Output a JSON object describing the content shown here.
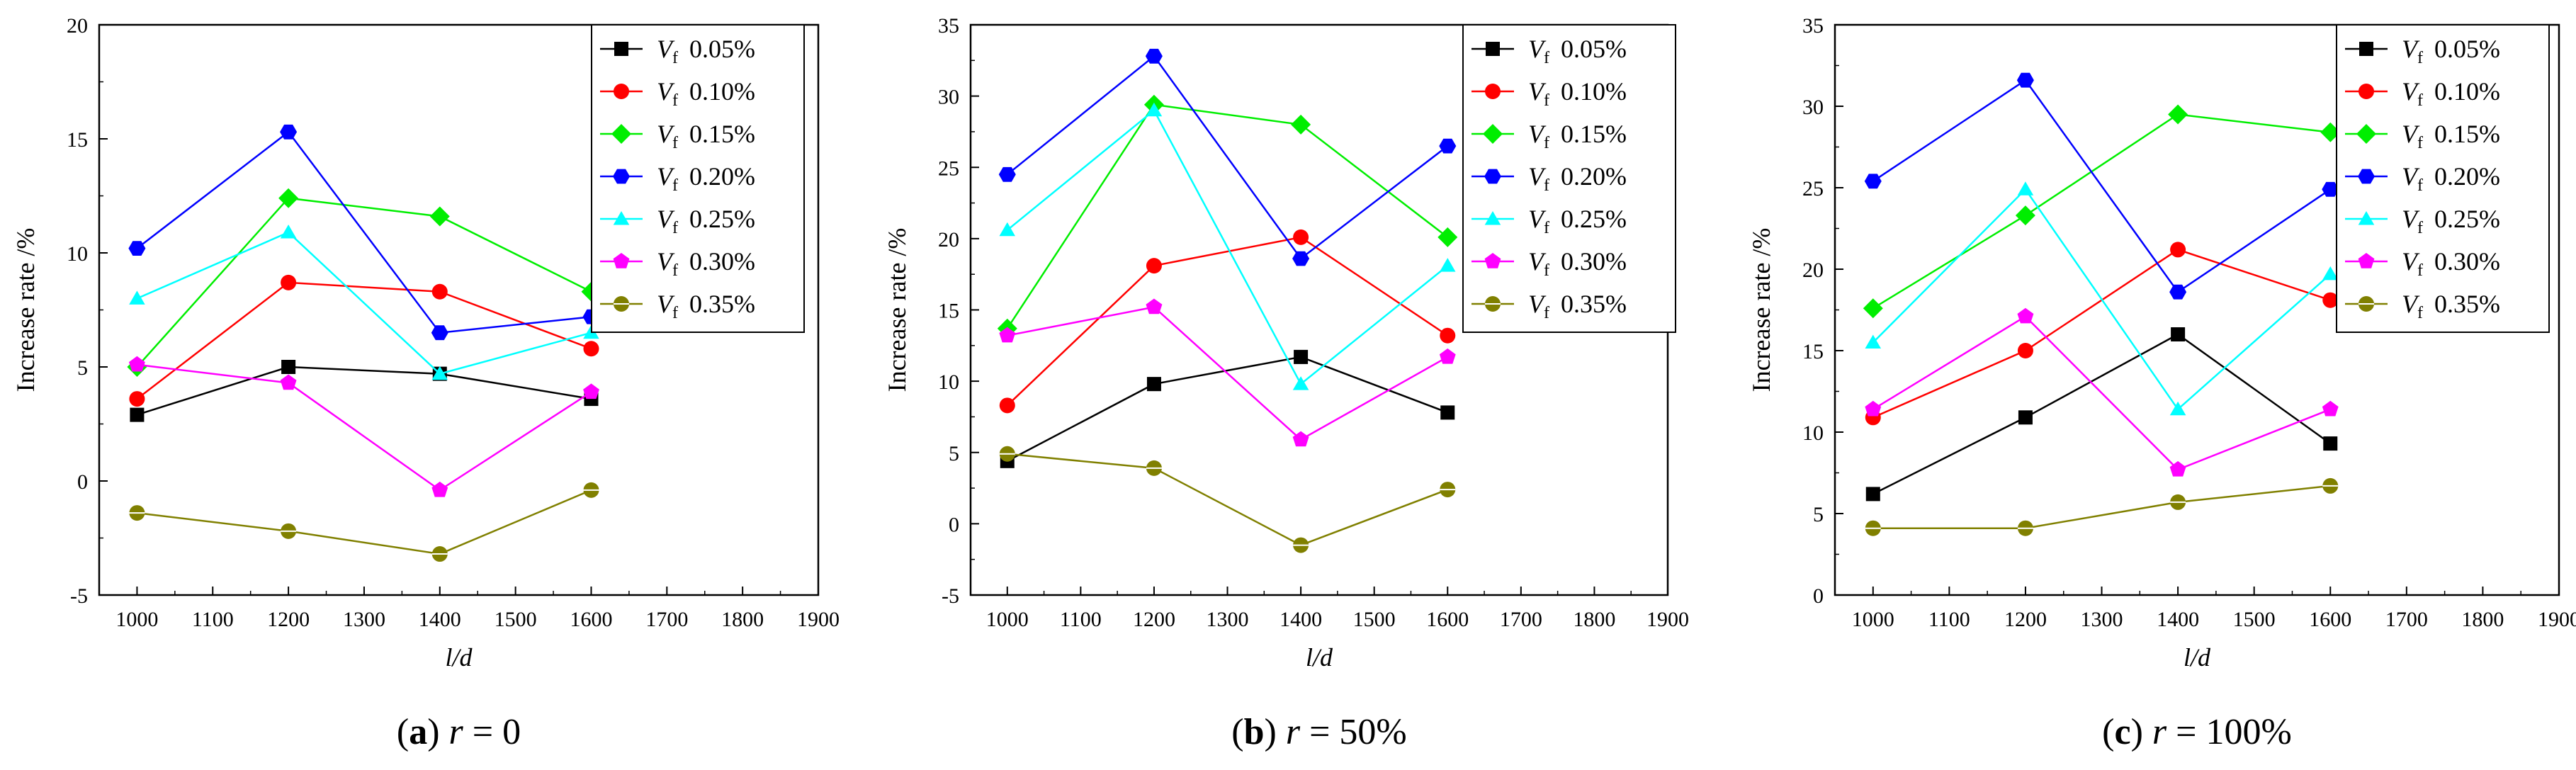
{
  "colors": {
    "0.05%": "#000000",
    "0.10%": "#ff0000",
    "0.15%": "#00ee00",
    "0.20%": "#0000ff",
    "0.25%": "#00ffff",
    "0.30%": "#ff00ff",
    "0.35%": "#808000"
  },
  "legend_symbol": "V",
  "legend_subscript": "f",
  "chart_data": [
    {
      "type": "line",
      "panel_label": "a",
      "caption": "r = 0",
      "caption_var": "r",
      "caption_value": "= 0",
      "xlabel": "l/d",
      "ylabel": "Increase rate /%",
      "xlim": [
        950,
        1900
      ],
      "ylim": [
        -5,
        20
      ],
      "xticks": [
        1000,
        1100,
        1200,
        1300,
        1400,
        1500,
        1600,
        1700,
        1800,
        1900
      ],
      "yticks": [
        -5,
        0,
        5,
        10,
        15,
        20
      ],
      "x": [
        1000,
        1200,
        1400,
        1600
      ],
      "series": [
        {
          "name": "0.05%",
          "marker": "square",
          "values": [
            2.9,
            5.0,
            4.7,
            3.6
          ]
        },
        {
          "name": "0.10%",
          "marker": "circle",
          "values": [
            3.6,
            8.7,
            8.3,
            5.8
          ]
        },
        {
          "name": "0.15%",
          "marker": "diamond",
          "values": [
            5.0,
            12.4,
            11.6,
            8.3
          ]
        },
        {
          "name": "0.20%",
          "marker": "hexagon",
          "values": [
            10.2,
            15.3,
            6.5,
            7.2
          ]
        },
        {
          "name": "0.25%",
          "marker": "triangle",
          "values": [
            8.0,
            10.9,
            4.7,
            6.5
          ]
        },
        {
          "name": "0.30%",
          "marker": "pentagon",
          "values": [
            5.1,
            4.3,
            -0.4,
            3.9
          ]
        },
        {
          "name": "0.35%",
          "marker": "circle-line",
          "values": [
            -1.4,
            -2.2,
            -3.2,
            -0.4
          ]
        }
      ]
    },
    {
      "type": "line",
      "panel_label": "b",
      "caption": "r = 50%",
      "caption_var": "r",
      "caption_value": "= 50%",
      "xlabel": "l/d",
      "ylabel": "Increase rate /%",
      "xlim": [
        950,
        1900
      ],
      "ylim": [
        -5,
        35
      ],
      "xticks": [
        1000,
        1100,
        1200,
        1300,
        1400,
        1500,
        1600,
        1700,
        1800,
        1900
      ],
      "yticks": [
        -5,
        0,
        5,
        10,
        15,
        20,
        25,
        30,
        35
      ],
      "x": [
        1000,
        1200,
        1400,
        1600
      ],
      "series": [
        {
          "name": "0.05%",
          "marker": "square",
          "values": [
            4.4,
            9.8,
            11.7,
            7.8
          ]
        },
        {
          "name": "0.10%",
          "marker": "circle",
          "values": [
            8.3,
            18.1,
            20.1,
            13.2
          ]
        },
        {
          "name": "0.15%",
          "marker": "diamond",
          "values": [
            13.7,
            29.4,
            28.0,
            20.1
          ]
        },
        {
          "name": "0.20%",
          "marker": "hexagon",
          "values": [
            24.5,
            32.8,
            18.6,
            26.5
          ]
        },
        {
          "name": "0.25%",
          "marker": "triangle",
          "values": [
            20.6,
            29.0,
            9.8,
            18.1
          ]
        },
        {
          "name": "0.30%",
          "marker": "pentagon",
          "values": [
            13.2,
            15.2,
            5.9,
            11.7
          ]
        },
        {
          "name": "0.35%",
          "marker": "circle-line",
          "values": [
            4.9,
            3.9,
            -1.5,
            2.4
          ]
        }
      ]
    },
    {
      "type": "line",
      "panel_label": "c",
      "caption": "r = 100%",
      "caption_var": "r",
      "caption_value": "= 100%",
      "xlabel": "l/d",
      "ylabel": "Increase rate /%",
      "xlim": [
        950,
        1900
      ],
      "ylim": [
        0,
        35
      ],
      "xticks": [
        1000,
        1100,
        1200,
        1300,
        1400,
        1500,
        1600,
        1700,
        1800,
        1900
      ],
      "yticks": [
        0,
        5,
        10,
        15,
        20,
        25,
        30,
        35
      ],
      "x": [
        1000,
        1200,
        1400,
        1600
      ],
      "series": [
        {
          "name": "0.05%",
          "marker": "square",
          "values": [
            6.2,
            10.9,
            16.0,
            9.3
          ]
        },
        {
          "name": "0.10%",
          "marker": "circle",
          "values": [
            10.9,
            15.0,
            21.2,
            18.1
          ]
        },
        {
          "name": "0.15%",
          "marker": "diamond",
          "values": [
            17.6,
            23.3,
            29.5,
            28.4
          ]
        },
        {
          "name": "0.20%",
          "marker": "hexagon",
          "values": [
            25.4,
            31.6,
            18.6,
            24.9
          ]
        },
        {
          "name": "0.25%",
          "marker": "triangle",
          "values": [
            15.5,
            24.9,
            11.4,
            19.7
          ]
        },
        {
          "name": "0.30%",
          "marker": "pentagon",
          "values": [
            11.4,
            17.1,
            7.7,
            11.4
          ]
        },
        {
          "name": "0.35%",
          "marker": "circle-line",
          "values": [
            4.1,
            4.1,
            5.7,
            6.7
          ]
        }
      ]
    }
  ]
}
